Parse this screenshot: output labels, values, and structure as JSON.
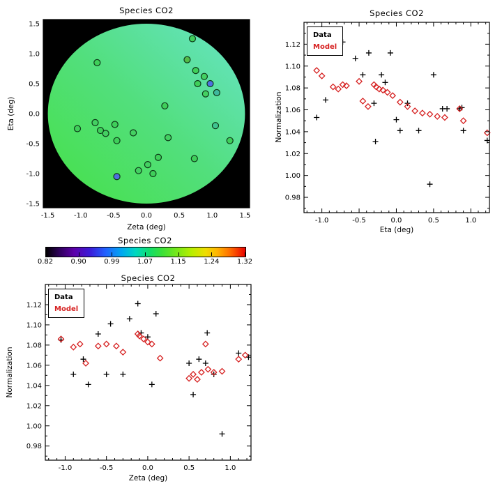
{
  "figure": {
    "background": "#ffffff",
    "data_marker_color": "#000000",
    "model_marker_color": "#d62020"
  },
  "chart_data": [
    {
      "id": "map",
      "type": "scatter",
      "title": "Species CO2",
      "xlabel": "Zeta (deg)",
      "ylabel": "Eta (deg)",
      "xlim": [
        -1.57,
        1.57
      ],
      "ylim": [
        -1.57,
        1.57
      ],
      "xticks": [
        -1.5,
        -1.0,
        -0.5,
        0.0,
        0.5,
        1.0,
        1.5
      ],
      "xtick_labels": [
        "-1.5",
        "-1.0",
        "-0.5",
        "0.0",
        "0.5",
        "1.0",
        "1.5"
      ],
      "yticks": [
        -1.5,
        -1.0,
        -0.5,
        0.0,
        0.5,
        1.0,
        1.5
      ],
      "ytick_labels": [
        "-1.5",
        "-1.0",
        "-0.5",
        "0.0",
        "0.5",
        "1.0",
        "1.5"
      ],
      "xminor": 0.25,
      "yminor": 0.25,
      "background": "#000000",
      "disk": {
        "radius": 1.5,
        "gradient": [
          "#68e3c8",
          "#52df7d",
          "#46e046"
        ]
      },
      "points": [
        {
          "x": -0.75,
          "y": 0.85,
          "c": "#3fcf5a"
        },
        {
          "x": 0.7,
          "y": 1.25,
          "c": "#3fcf5a"
        },
        {
          "x": 0.62,
          "y": 0.9,
          "c": "#54bb48"
        },
        {
          "x": 0.75,
          "y": 0.72,
          "c": "#3fcf5a"
        },
        {
          "x": 0.88,
          "y": 0.62,
          "c": "#44d062"
        },
        {
          "x": 0.78,
          "y": 0.5,
          "c": "#3fcf5a"
        },
        {
          "x": 0.97,
          "y": 0.5,
          "c": "#4f6fe0"
        },
        {
          "x": 0.9,
          "y": 0.33,
          "c": "#44d062"
        },
        {
          "x": 1.07,
          "y": 0.35,
          "c": "#3fb89e"
        },
        {
          "x": -1.05,
          "y": -0.25,
          "c": "#3fcf5a"
        },
        {
          "x": -0.78,
          "y": -0.15,
          "c": "#44d062"
        },
        {
          "x": -0.7,
          "y": -0.28,
          "c": "#3fcf5a"
        },
        {
          "x": -0.62,
          "y": -0.33,
          "c": "#44d062"
        },
        {
          "x": -0.48,
          "y": -0.18,
          "c": "#3fcf5a"
        },
        {
          "x": -0.45,
          "y": -0.45,
          "c": "#3fcf5a"
        },
        {
          "x": -0.2,
          "y": -0.32,
          "c": "#44d062"
        },
        {
          "x": 0.28,
          "y": 0.13,
          "c": "#3fcf5a"
        },
        {
          "x": 0.33,
          "y": -0.4,
          "c": "#44d062"
        },
        {
          "x": 0.18,
          "y": -0.73,
          "c": "#3fcf5a"
        },
        {
          "x": 0.02,
          "y": -0.85,
          "c": "#44d062"
        },
        {
          "x": 0.1,
          "y": -1.0,
          "c": "#3fcf5a"
        },
        {
          "x": -0.12,
          "y": -0.95,
          "c": "#44d062"
        },
        {
          "x": -0.45,
          "y": -1.05,
          "c": "#4f6fe0"
        },
        {
          "x": 0.73,
          "y": -0.75,
          "c": "#3fcf5a"
        },
        {
          "x": 1.05,
          "y": -0.2,
          "c": "#40c492"
        },
        {
          "x": 1.27,
          "y": -0.45,
          "c": "#3fcf5a"
        }
      ]
    },
    {
      "id": "scatter-eta",
      "type": "scatter",
      "title": "Species CO2",
      "xlabel": "Eta (deg)",
      "ylabel": "Normalization",
      "xlim": [
        -1.24,
        1.25
      ],
      "ylim": [
        0.966,
        1.14
      ],
      "xticks": [
        -1.0,
        -0.5,
        0.0,
        0.5,
        1.0
      ],
      "xtick_labels": [
        "-1.0",
        "-0.5",
        "0.0",
        "0.5",
        "1.0"
      ],
      "yticks": [
        0.98,
        1.0,
        1.02,
        1.04,
        1.06,
        1.08,
        1.1,
        1.12
      ],
      "ytick_labels": [
        "0.98",
        "1.00",
        "1.02",
        "1.04",
        "1.06",
        "1.08",
        "1.10",
        "1.12"
      ],
      "xminor": 0.1,
      "yminor": 0.01,
      "legend": {
        "position": "top-left"
      },
      "series": [
        {
          "name": "Data",
          "marker": "plus",
          "color": "#000000",
          "points": [
            [
              -1.07,
              1.053
            ],
            [
              -0.95,
              1.069
            ],
            [
              -0.72,
              1.122
            ],
            [
              -0.55,
              1.107
            ],
            [
              -0.45,
              1.092
            ],
            [
              -0.37,
              1.112
            ],
            [
              -0.3,
              1.066
            ],
            [
              -0.28,
              1.031
            ],
            [
              -0.2,
              1.092
            ],
            [
              -0.15,
              1.085
            ],
            [
              -0.08,
              1.112
            ],
            [
              0.0,
              1.051
            ],
            [
              0.05,
              1.041
            ],
            [
              0.15,
              1.066
            ],
            [
              0.3,
              1.041
            ],
            [
              0.45,
              0.992
            ],
            [
              0.5,
              1.092
            ],
            [
              0.62,
              1.061
            ],
            [
              0.68,
              1.061
            ],
            [
              0.85,
              1.061
            ],
            [
              0.88,
              1.062
            ],
            [
              0.9,
              1.041
            ],
            [
              1.22,
              1.032
            ]
          ]
        },
        {
          "name": "Model",
          "marker": "diamond",
          "color": "#d62020",
          "points": [
            [
              -1.07,
              1.096
            ],
            [
              -1.0,
              1.091
            ],
            [
              -0.85,
              1.081
            ],
            [
              -0.78,
              1.079
            ],
            [
              -0.72,
              1.083
            ],
            [
              -0.67,
              1.082
            ],
            [
              -0.5,
              1.086
            ],
            [
              -0.45,
              1.068
            ],
            [
              -0.38,
              1.063
            ],
            [
              -0.3,
              1.083
            ],
            [
              -0.27,
              1.081
            ],
            [
              -0.23,
              1.079
            ],
            [
              -0.18,
              1.078
            ],
            [
              -0.12,
              1.076
            ],
            [
              -0.05,
              1.073
            ],
            [
              0.05,
              1.067
            ],
            [
              0.15,
              1.063
            ],
            [
              0.25,
              1.059
            ],
            [
              0.35,
              1.057
            ],
            [
              0.45,
              1.056
            ],
            [
              0.55,
              1.054
            ],
            [
              0.65,
              1.053
            ],
            [
              0.85,
              1.061
            ],
            [
              0.9,
              1.05
            ],
            [
              1.22,
              1.039
            ]
          ]
        }
      ]
    },
    {
      "id": "colorbar",
      "type": "heatmap",
      "title": "Species CO2",
      "tick_labels": [
        "0.82",
        "0.90",
        "0.99",
        "1.07",
        "1.15",
        "1.24",
        "1.32"
      ],
      "gradient": [
        "#000000 0%",
        "#30005e 7%",
        "#5c00a8 14%",
        "#3b1bd8 22%",
        "#2062ff 30%",
        "#00a8f0 38%",
        "#00d8c0 45%",
        "#12dd6a 52%",
        "#3ae03a 58%",
        "#7ae818 66%",
        "#b8ee00 73%",
        "#eedd00 80%",
        "#ffb300 86%",
        "#ff7100 92%",
        "#f63a00 96%",
        "#e80000 100%"
      ]
    },
    {
      "id": "scatter-zeta",
      "type": "scatter",
      "title": "Species CO2",
      "xlabel": "Zeta (deg)",
      "ylabel": "Normalization",
      "xlim": [
        -1.24,
        1.25
      ],
      "ylim": [
        0.966,
        1.14
      ],
      "xticks": [
        -1.0,
        -0.5,
        0.0,
        0.5,
        1.0
      ],
      "xtick_labels": [
        "-1.0",
        "-0.5",
        "0.0",
        "0.5",
        "1.0"
      ],
      "yticks": [
        0.98,
        1.0,
        1.02,
        1.04,
        1.06,
        1.08,
        1.1,
        1.12
      ],
      "ytick_labels": [
        "0.98",
        "1.00",
        "1.02",
        "1.04",
        "1.06",
        "1.08",
        "1.10",
        "1.12"
      ],
      "xminor": 0.1,
      "yminor": 0.01,
      "legend": {
        "position": "top-left"
      },
      "series": [
        {
          "name": "Data",
          "marker": "plus",
          "color": "#000000",
          "points": [
            [
              -1.05,
              1.085
            ],
            [
              -0.9,
              1.051
            ],
            [
              -0.78,
              1.066
            ],
            [
              -0.72,
              1.041
            ],
            [
              -0.6,
              1.091
            ],
            [
              -0.5,
              1.051
            ],
            [
              -0.45,
              1.101
            ],
            [
              -0.3,
              1.051
            ],
            [
              -0.22,
              1.106
            ],
            [
              -0.12,
              1.121
            ],
            [
              -0.08,
              1.092
            ],
            [
              0.0,
              1.088
            ],
            [
              0.05,
              1.041
            ],
            [
              0.1,
              1.111
            ],
            [
              0.5,
              1.062
            ],
            [
              0.55,
              1.031
            ],
            [
              0.62,
              1.066
            ],
            [
              0.7,
              1.062
            ],
            [
              0.72,
              1.092
            ],
            [
              0.8,
              1.051
            ],
            [
              0.9,
              0.992
            ],
            [
              1.1,
              1.072
            ],
            [
              1.22,
              1.068
            ]
          ]
        },
        {
          "name": "Model",
          "marker": "diamond",
          "color": "#d62020",
          "points": [
            [
              -1.05,
              1.086
            ],
            [
              -0.9,
              1.078
            ],
            [
              -0.82,
              1.081
            ],
            [
              -0.75,
              1.062
            ],
            [
              -0.6,
              1.079
            ],
            [
              -0.5,
              1.081
            ],
            [
              -0.38,
              1.079
            ],
            [
              -0.3,
              1.073
            ],
            [
              -0.12,
              1.091
            ],
            [
              -0.1,
              1.089
            ],
            [
              -0.05,
              1.086
            ],
            [
              0.0,
              1.083
            ],
            [
              0.05,
              1.081
            ],
            [
              0.15,
              1.067
            ],
            [
              0.5,
              1.047
            ],
            [
              0.55,
              1.051
            ],
            [
              0.6,
              1.046
            ],
            [
              0.65,
              1.053
            ],
            [
              0.7,
              1.081
            ],
            [
              0.73,
              1.056
            ],
            [
              0.8,
              1.053
            ],
            [
              0.9,
              1.054
            ],
            [
              1.1,
              1.066
            ],
            [
              1.18,
              1.07
            ]
          ]
        }
      ]
    }
  ]
}
